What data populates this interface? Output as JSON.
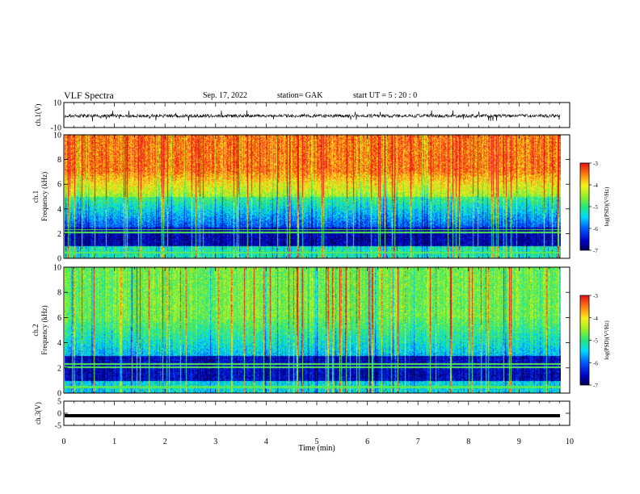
{
  "header": {
    "title": "VLF Spectra",
    "date": "Sep. 17, 2022",
    "station": "station= GAK",
    "start": "start  UT =   5  : 20 : 0"
  },
  "chart_data": [
    {
      "type": "line",
      "name": "ch1-waveform",
      "ylabel": "ch.1(V)",
      "ylim": [
        -10,
        10
      ],
      "yticks": [
        "10",
        "-10"
      ],
      "xlim": [
        0,
        10
      ]
    },
    {
      "type": "heatmap",
      "name": "ch1-spectrogram",
      "ylabel_line1": "ch.1",
      "ylabel_line2": "Frequency  (kHz)",
      "ylim": [
        0,
        10
      ],
      "yticks": [
        "0",
        "2",
        "4",
        "6",
        "8",
        "10"
      ],
      "xlim": [
        0,
        10
      ],
      "colorbar": {
        "label": "log(PSD)(V²/Hz)",
        "range": [
          -7,
          -3
        ],
        "ticks": [
          "-3",
          "-4",
          "-5",
          "-6",
          "-7"
        ]
      }
    },
    {
      "type": "heatmap",
      "name": "ch2-spectrogram",
      "ylabel_line1": "ch.2",
      "ylabel_line2": "Frequency  (kHz)",
      "ylim": [
        0,
        10
      ],
      "yticks": [
        "0",
        "2",
        "4",
        "6",
        "8",
        "10"
      ],
      "xlim": [
        0,
        10
      ],
      "colorbar": {
        "label": "log(PSD)(V²/Hz)",
        "range": [
          -7,
          -3
        ],
        "ticks": [
          "-3",
          "-4",
          "-5",
          "-6",
          "-7"
        ]
      }
    },
    {
      "type": "line",
      "name": "ch3-waveform",
      "ylabel": "ch.3(V)",
      "ylim": [
        -5,
        5
      ],
      "yticks": [
        "5",
        "0",
        "-5"
      ],
      "xlim": [
        0,
        10
      ],
      "xlabel": "Time  (min)",
      "xticks": [
        "0",
        "1",
        "2",
        "3",
        "4",
        "5",
        "6",
        "7",
        "8",
        "9",
        "10"
      ],
      "level": -1
    }
  ]
}
